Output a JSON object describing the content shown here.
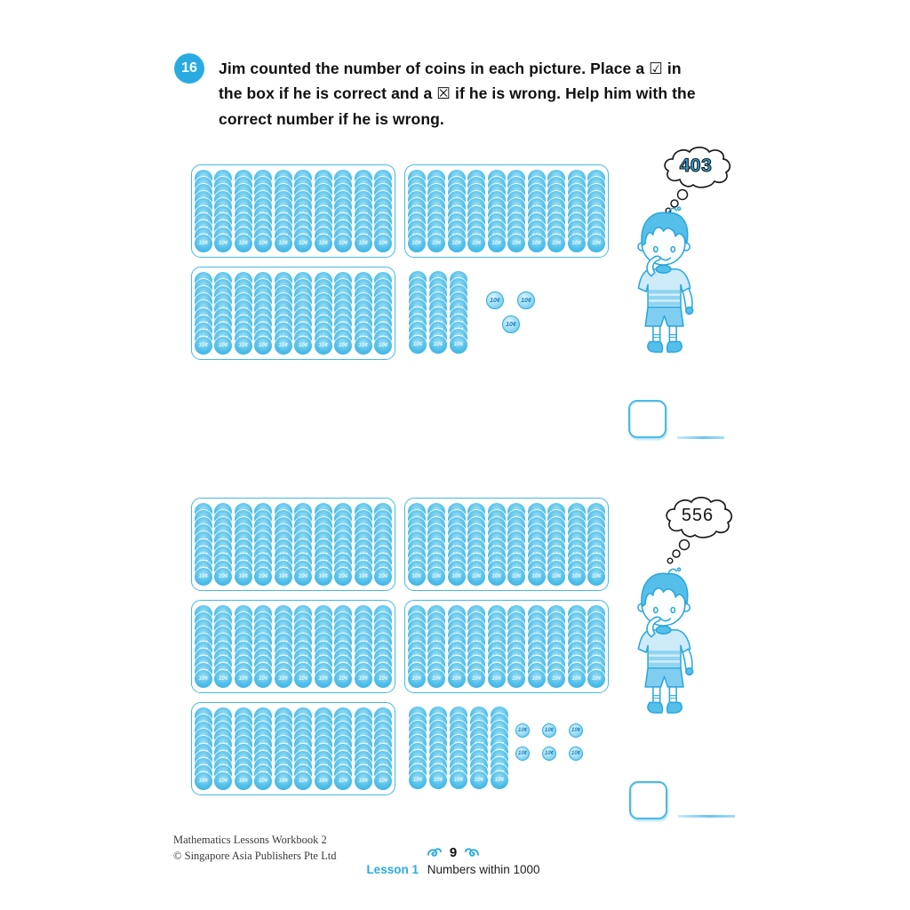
{
  "question": {
    "number": "16",
    "lines": [
      "Jim counted the number of coins in each picture. Place a ☑ in",
      "the box if he is correct and a ☒ if he is wrong. Help him with the",
      "correct number if he is wrong."
    ]
  },
  "coin": {
    "label": "10¢",
    "coins_per_stack": 10
  },
  "pictures": [
    {
      "name": "picture-1",
      "thought": {
        "value": "403",
        "style": "outlined"
      },
      "rows": [
        [
          {
            "type": "box",
            "stacks": 10
          },
          {
            "type": "box",
            "stacks": 10
          }
        ],
        [
          {
            "type": "box",
            "stacks": 10
          },
          {
            "type": "stacks",
            "count": 3
          },
          {
            "type": "coins",
            "count": 3,
            "layout": "triangle"
          }
        ]
      ]
    },
    {
      "name": "picture-2",
      "thought": {
        "value": "556",
        "style": "plain"
      },
      "rows": [
        [
          {
            "type": "box",
            "stacks": 10
          },
          {
            "type": "box",
            "stacks": 10
          }
        ],
        [
          {
            "type": "box",
            "stacks": 10
          },
          {
            "type": "box",
            "stacks": 10
          }
        ],
        [
          {
            "type": "box",
            "stacks": 10
          },
          {
            "type": "stacks",
            "count": 5
          },
          {
            "type": "coins",
            "count": 6,
            "layout": "grid-2x3"
          }
        ]
      ]
    }
  ],
  "answers": [
    {
      "checked": false
    },
    {
      "checked": false
    }
  ],
  "footer": {
    "book_title": "Mathematics Lessons Workbook 2",
    "publisher": "© Singapore Asia Publishers Pte Ltd",
    "page_number": "9",
    "lesson_label": "Lesson 1",
    "lesson_title": "Numbers within 1000"
  },
  "colors": {
    "accent": "#29abe2",
    "coin_blue": "#3bb3e1",
    "outline_blue": "#2ba7de"
  }
}
